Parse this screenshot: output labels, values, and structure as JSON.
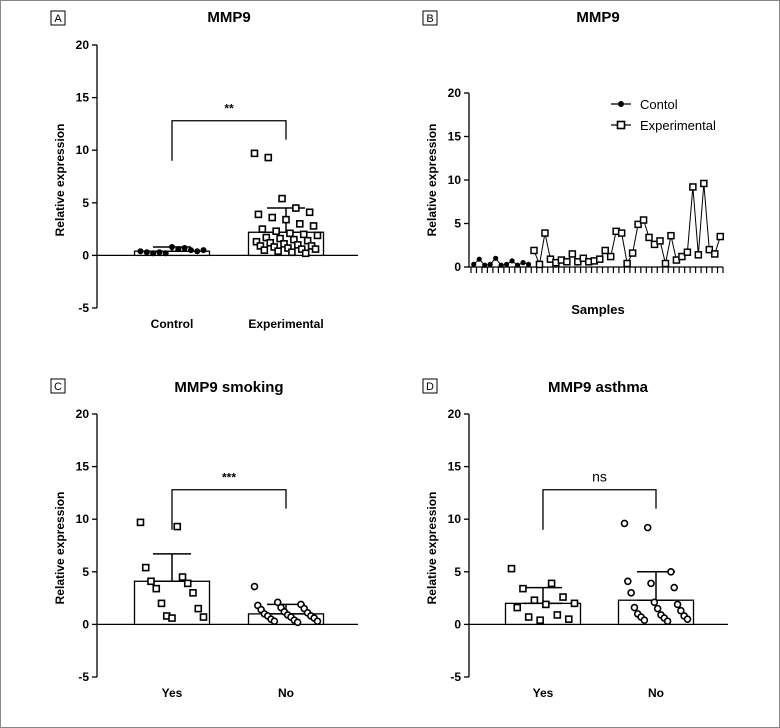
{
  "figure": {
    "panels_note": "Four-panel MMP9 expression figure"
  },
  "chart_data": [
    {
      "panel": "A",
      "type": "bar",
      "title": "MMP9",
      "ylabel": "Relative expression",
      "xlabel": "",
      "ylim": [
        -5,
        20
      ],
      "yticks": [
        -5,
        0,
        5,
        10,
        15,
        20
      ],
      "categories": [
        "Control",
        "Experimental"
      ],
      "values": [
        0.4,
        2.2
      ],
      "error": [
        0.4,
        2.3
      ],
      "points": [
        [
          0.4,
          0.7,
          0.3,
          0.5,
          0.6,
          0.2,
          0.4,
          0.8,
          0.3,
          0.5,
          0.2
        ],
        [
          9.7,
          9.3,
          5.4,
          4.5,
          4.1,
          3.9,
          3.6,
          3.4,
          3.0,
          2.8,
          2.5,
          2.3,
          2.1,
          2.0,
          1.9,
          1.7,
          1.6,
          1.5,
          1.4,
          1.3,
          1.2,
          1.1,
          1.0,
          0.9,
          0.9,
          0.8,
          0.7,
          0.6,
          0.6,
          0.5,
          0.4,
          0.3,
          0.2
        ]
      ],
      "significance": "**",
      "bracket_y": 12.8
    },
    {
      "panel": "B",
      "type": "line",
      "title": "MMP9",
      "ylabel": "Relative expression",
      "xlabel": "Samples",
      "ylim": [
        0,
        20
      ],
      "yticks": [
        0,
        5,
        10,
        15,
        20
      ],
      "legend": [
        "Contol",
        "Experimental"
      ],
      "legend_position": "top-right",
      "series": [
        {
          "name": "Contol",
          "marker": "dot",
          "x": [
            1,
            2,
            3,
            4,
            5,
            6,
            7,
            8,
            9,
            10,
            11
          ],
          "values": [
            0.3,
            0.9,
            0.2,
            0.3,
            1.0,
            0.2,
            0.3,
            0.7,
            0.2,
            0.5,
            0.3
          ]
        },
        {
          "name": "Experimental",
          "marker": "square",
          "x": [
            12,
            13,
            14,
            15,
            16,
            17,
            18,
            19,
            20,
            21,
            22,
            23,
            24,
            25,
            26,
            27,
            28,
            29,
            30,
            31,
            32,
            33,
            34,
            35,
            36,
            37,
            38,
            39,
            40,
            41,
            42,
            43,
            44,
            45,
            46
          ],
          "values": [
            1.9,
            0.3,
            3.9,
            0.9,
            0.5,
            0.8,
            0.6,
            1.5,
            0.6,
            1.0,
            0.6,
            0.7,
            0.9,
            1.9,
            1.2,
            4.1,
            3.9,
            0.4,
            1.6,
            4.9,
            5.4,
            3.4,
            2.6,
            3.0,
            0.4,
            3.6,
            0.8,
            1.2,
            1.7,
            9.2,
            1.4,
            9.6,
            2.0,
            1.5,
            3.5
          ]
        }
      ]
    },
    {
      "panel": "C",
      "type": "bar",
      "title": "MMP9 smoking",
      "ylabel": "Relative expression",
      "xlabel": "",
      "ylim": [
        -5,
        20
      ],
      "yticks": [
        -5,
        0,
        5,
        10,
        15,
        20
      ],
      "categories": [
        "Yes",
        "No"
      ],
      "values": [
        4.1,
        1.0
      ],
      "error": [
        2.6,
        0.9
      ],
      "points": [
        [
          9.7,
          9.3,
          5.4,
          4.5,
          4.1,
          3.9,
          3.4,
          3.0,
          2.0,
          1.5,
          0.8,
          0.7,
          0.6
        ],
        [
          3.6,
          2.1,
          1.9,
          1.8,
          1.6,
          1.5,
          1.4,
          1.2,
          1.1,
          1.0,
          0.9,
          0.8,
          0.8,
          0.7,
          0.6,
          0.5,
          0.4,
          0.3,
          0.3,
          0.2
        ]
      ],
      "significance": "***",
      "bracket_y": 12.8
    },
    {
      "panel": "D",
      "type": "bar",
      "title": "MMP9 asthma",
      "ylabel": "Relative expression",
      "xlabel": "",
      "ylim": [
        -5,
        20
      ],
      "yticks": [
        -5,
        0,
        5,
        10,
        15,
        20
      ],
      "categories": [
        "Yes",
        "No"
      ],
      "values": [
        2.0,
        2.3
      ],
      "error": [
        1.5,
        2.7
      ],
      "points": [
        [
          5.3,
          3.9,
          3.4,
          2.6,
          2.3,
          2.0,
          1.9,
          1.6,
          0.9,
          0.7,
          0.5,
          0.4
        ],
        [
          9.6,
          9.2,
          5.0,
          4.1,
          3.9,
          3.5,
          3.0,
          2.1,
          1.9,
          1.6,
          1.5,
          1.3,
          1.0,
          0.9,
          0.8,
          0.7,
          0.6,
          0.5,
          0.4,
          0.3
        ]
      ],
      "significance": "ns",
      "bracket_y": 12.8
    }
  ]
}
